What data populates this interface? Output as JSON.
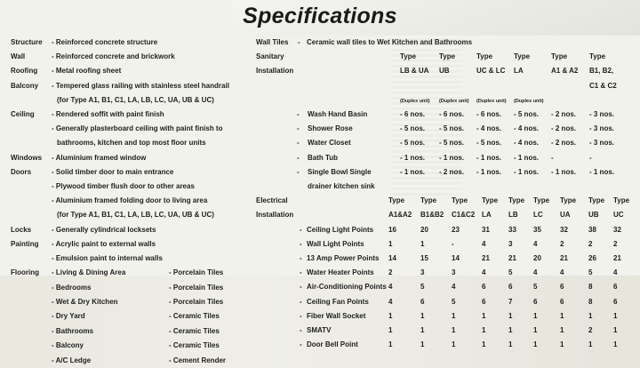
{
  "title": "Specifications",
  "left_specs": [
    {
      "label": "Structure",
      "lines": [
        "- Reinforced concrete structure"
      ]
    },
    {
      "label": "Wall",
      "lines": [
        "- Reinforced concrete and brickwork"
      ]
    },
    {
      "label": "Roofing",
      "lines": [
        "- Metal roofing sheet"
      ]
    },
    {
      "label": "Balcony",
      "lines": [
        "- Tempered glass railing with stainless steel handrail",
        "(for Type A1, B1, C1, LA, LB, LC, UA, UB & UC)"
      ]
    },
    {
      "label": "Ceiling",
      "lines": [
        "- Rendered soffit with paint finish",
        "- Generally plasterboard ceiling with paint finish to",
        "bathrooms, kitchen and top most floor units"
      ]
    },
    {
      "label": "Windows",
      "lines": [
        "- Aluminium framed window"
      ]
    },
    {
      "label": "Doors",
      "lines": [
        "- Solid timber door to main entrance",
        "- Plywood timber flush door to other areas",
        "- Aluminium framed folding door to living area",
        "(for Type A1, B1, C1, LA, LB, LC, UA, UB & UC)"
      ]
    },
    {
      "label": "Locks",
      "lines": [
        "- Generally cylindrical locksets"
      ]
    },
    {
      "label": "Painting",
      "lines": [
        "- Acrylic paint to external walls",
        "- Emulsion paint to internal walls"
      ]
    }
  ],
  "flooring": {
    "label": "Flooring",
    "rows": [
      {
        "area": "- Living & Dining Area",
        "finish": "- Porcelain Tiles"
      },
      {
        "area": "- Bedrooms",
        "finish": "- Porcelain Tiles"
      },
      {
        "area": "- Wet & Dry Kitchen",
        "finish": "- Porcelain Tiles"
      },
      {
        "area": "- Dry Yard",
        "finish": "- Ceramic Tiles"
      },
      {
        "area": "- Bathrooms",
        "finish": "- Ceramic Tiles"
      },
      {
        "area": "- Balcony",
        "finish": "- Ceramic Tiles"
      },
      {
        "area": "- A/C Ledge",
        "finish": "- Cement Render"
      }
    ]
  },
  "wall_tiles": {
    "label": "Wall Tiles",
    "dash": "-",
    "value": "Ceramic wall tiles to Wet Kitchen and Bathrooms"
  },
  "sanitary": {
    "label1": "Sanitary",
    "label2": "Installation",
    "columns": [
      {
        "type": "Type",
        "name": "LB & UA",
        "name2": "",
        "note": "(Duplex unit)"
      },
      {
        "type": "Type",
        "name": "UB",
        "name2": "",
        "note": "(Duplex unit)"
      },
      {
        "type": "Type",
        "name": "UC & LC",
        "name2": "",
        "note": "(Duplex unit)"
      },
      {
        "type": "Type",
        "name": "LA",
        "name2": "",
        "note": "(Duplex unit)"
      },
      {
        "type": "Type",
        "name": "A1 & A2",
        "name2": "",
        "note": ""
      },
      {
        "type": "Type",
        "name": "B1, B2,",
        "name2": "C1 & C2",
        "note": ""
      }
    ],
    "rows": [
      {
        "item": "Wash Hand Basin",
        "item2": "",
        "values": [
          "- 6 nos.",
          "- 6 nos.",
          "- 6 nos.",
          "- 5 nos.",
          "- 2 nos.",
          "- 3 nos."
        ]
      },
      {
        "item": "Shower Rose",
        "item2": "",
        "values": [
          "- 5 nos.",
          "- 5 nos.",
          "- 4 nos.",
          "- 4 nos.",
          "- 2 nos.",
          "- 3 nos."
        ]
      },
      {
        "item": "Water Closet",
        "item2": "",
        "values": [
          "- 5 nos.",
          "- 5 nos.",
          "- 5 nos.",
          "- 4 nos.",
          "- 2 nos.",
          "- 3 nos."
        ]
      },
      {
        "item": "Bath Tub",
        "item2": "",
        "values": [
          "- 1 nos.",
          "- 1 nos.",
          "- 1 nos.",
          "- 1 nos.",
          "-",
          "-"
        ]
      },
      {
        "item": "Single Bowl Single",
        "item2": "drainer kitchen sink",
        "values": [
          "- 1 nos.",
          "- 2 nos.",
          "- 1 nos.",
          "- 1 nos.",
          "- 1 nos.",
          "- 1 nos."
        ]
      }
    ]
  },
  "electrical": {
    "label1": "Electrical",
    "label2": "Installation",
    "columns": [
      {
        "type": "Type",
        "name": "A1&A2"
      },
      {
        "type": "Type",
        "name": "B1&B2"
      },
      {
        "type": "Type",
        "name": "C1&C2"
      },
      {
        "type": "Type",
        "name": "LA"
      },
      {
        "type": "Type",
        "name": "LB"
      },
      {
        "type": "Type",
        "name": "LC"
      },
      {
        "type": "Type",
        "name": "UA"
      },
      {
        "type": "Type",
        "name": "UB"
      },
      {
        "type": "Type",
        "name": "UC"
      }
    ],
    "rows": [
      {
        "item": "Ceiling Light Points",
        "values": [
          "16",
          "20",
          "23",
          "31",
          "33",
          "35",
          "32",
          "38",
          "32"
        ]
      },
      {
        "item": "Wall Light Points",
        "values": [
          "1",
          "1",
          "-",
          "4",
          "3",
          "4",
          "2",
          "2",
          "2"
        ]
      },
      {
        "item": "13 Amp Power Points",
        "values": [
          "14",
          "15",
          "14",
          "21",
          "21",
          "20",
          "21",
          "26",
          "21"
        ]
      },
      {
        "item": "Water Heater Points",
        "values": [
          "2",
          "3",
          "3",
          "4",
          "5",
          "4",
          "4",
          "5",
          "4"
        ]
      },
      {
        "item": "Air-Conditioning Points",
        "values": [
          "4",
          "5",
          "4",
          "6",
          "6",
          "5",
          "6",
          "8",
          "6"
        ]
      },
      {
        "item": "Ceiling Fan Points",
        "values": [
          "4",
          "6",
          "5",
          "6",
          "7",
          "6",
          "6",
          "8",
          "6"
        ]
      },
      {
        "item": "Fiber Wall Socket",
        "values": [
          "1",
          "1",
          "1",
          "1",
          "1",
          "1",
          "1",
          "1",
          "1"
        ]
      },
      {
        "item": "SMATV",
        "values": [
          "1",
          "1",
          "1",
          "1",
          "1",
          "1",
          "1",
          "2",
          "1"
        ]
      },
      {
        "item": "Door Bell Point",
        "values": [
          "1",
          "1",
          "1",
          "1",
          "1",
          "1",
          "1",
          "1",
          "1"
        ]
      }
    ]
  },
  "bullet": "-"
}
